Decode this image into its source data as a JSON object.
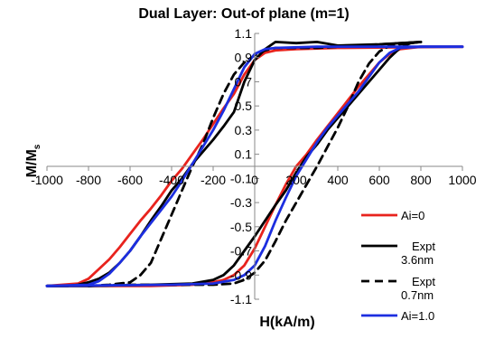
{
  "chart_data": {
    "type": "line",
    "title": "Dual Layer: Out-of plane (m=1)",
    "xlabel": "H(kA/m)",
    "ylabel_main": "M/M",
    "ylabel_sub": "s",
    "xlim": [
      -1000,
      1000
    ],
    "ylim": [
      -1.1,
      1.1
    ],
    "x_ticks": [
      "-1000",
      "-800",
      "-600",
      "-400",
      "-200",
      "0",
      "200",
      "400",
      "600",
      "800",
      "1000"
    ],
    "y_ticks": [
      "1.1",
      "0.9",
      "0.7",
      "0.5",
      "0.3",
      "0.1",
      "-0.1",
      "-0.3",
      "-0.5",
      "-0.7",
      "-0.9",
      "-1.1"
    ],
    "grid": false,
    "legend_position": "bottom-right",
    "series": [
      {
        "name": "Ai=0",
        "color": "#e8231d",
        "dash": "solid",
        "branches": [
          [
            [
              1000,
              0.99
            ],
            [
              800,
              0.99
            ],
            [
              700,
              0.97
            ],
            [
              650,
              0.93
            ],
            [
              600,
              0.86
            ],
            [
              550,
              0.76
            ],
            [
              500,
              0.66
            ],
            [
              450,
              0.55
            ],
            [
              400,
              0.44
            ],
            [
              350,
              0.33
            ],
            [
              300,
              0.22
            ],
            [
              250,
              0.1
            ],
            [
              200,
              0.0
            ],
            [
              150,
              -0.15
            ],
            [
              100,
              -0.32
            ],
            [
              50,
              -0.5
            ],
            [
              0,
              -0.68
            ],
            [
              -50,
              -0.82
            ],
            [
              -100,
              -0.9
            ],
            [
              -150,
              -0.94
            ],
            [
              -200,
              -0.96
            ],
            [
              -300,
              -0.98
            ],
            [
              -500,
              -0.99
            ],
            [
              -1000,
              -0.99
            ]
          ],
          [
            [
              -1000,
              -0.99
            ],
            [
              -850,
              -0.97
            ],
            [
              -800,
              -0.93
            ],
            [
              -750,
              -0.85
            ],
            [
              -700,
              -0.77
            ],
            [
              -650,
              -0.67
            ],
            [
              -600,
              -0.56
            ],
            [
              -550,
              -0.45
            ],
            [
              -500,
              -0.35
            ],
            [
              -450,
              -0.24
            ],
            [
              -400,
              -0.12
            ],
            [
              -350,
              -0.02
            ],
            [
              -300,
              0.1
            ],
            [
              -250,
              0.22
            ],
            [
              -200,
              0.35
            ],
            [
              -150,
              0.48
            ],
            [
              -100,
              0.6
            ],
            [
              -50,
              0.76
            ],
            [
              0,
              0.88
            ],
            [
              50,
              0.94
            ],
            [
              100,
              0.96
            ],
            [
              200,
              0.97
            ],
            [
              400,
              0.98
            ],
            [
              1000,
              0.99
            ]
          ]
        ]
      },
      {
        "name": "Expt 3.6nm",
        "color": "#000000",
        "dash": "solid",
        "branches": [
          [
            [
              800,
              1.03
            ],
            [
              750,
              1.02
            ],
            [
              700,
              0.98
            ],
            [
              650,
              0.9
            ],
            [
              600,
              0.8
            ],
            [
              550,
              0.7
            ],
            [
              500,
              0.6
            ],
            [
              450,
              0.5
            ],
            [
              400,
              0.4
            ],
            [
              350,
              0.3
            ],
            [
              300,
              0.18
            ],
            [
              250,
              0.08
            ],
            [
              200,
              -0.05
            ],
            [
              150,
              -0.2
            ],
            [
              100,
              -0.32
            ],
            [
              50,
              -0.45
            ],
            [
              0,
              -0.58
            ],
            [
              -50,
              -0.7
            ],
            [
              -100,
              -0.82
            ],
            [
              -150,
              -0.9
            ],
            [
              -200,
              -0.94
            ],
            [
              -300,
              -0.97
            ],
            [
              -500,
              -0.98
            ],
            [
              -800,
              -0.99
            ],
            [
              -1000,
              -0.99
            ]
          ],
          [
            [
              -1000,
              -0.99
            ],
            [
              -900,
              -0.99
            ],
            [
              -850,
              -0.98
            ],
            [
              -800,
              -0.96
            ],
            [
              -750,
              -0.93
            ],
            [
              -700,
              -0.88
            ],
            [
              -650,
              -0.8
            ],
            [
              -600,
              -0.7
            ],
            [
              -550,
              -0.58
            ],
            [
              -500,
              -0.45
            ],
            [
              -450,
              -0.33
            ],
            [
              -400,
              -0.2
            ],
            [
              -350,
              -0.1
            ],
            [
              -300,
              0.02
            ],
            [
              -250,
              0.12
            ],
            [
              -200,
              0.22
            ],
            [
              -150,
              0.33
            ],
            [
              -100,
              0.45
            ],
            [
              -50,
              0.7
            ],
            [
              0,
              0.88
            ],
            [
              50,
              0.97
            ],
            [
              100,
              1.03
            ],
            [
              200,
              1.02
            ],
            [
              300,
              1.03
            ],
            [
              400,
              1.0
            ],
            [
              600,
              1.01
            ],
            [
              800,
              1.03
            ]
          ]
        ]
      },
      {
        "name": "Expt 0.7nm",
        "color": "#000000",
        "dash": "dashed",
        "branches": [
          [
            [
              800,
              1.03
            ],
            [
              700,
              1.01
            ],
            [
              650,
              1.0
            ],
            [
              600,
              0.95
            ],
            [
              550,
              0.85
            ],
            [
              500,
              0.7
            ],
            [
              450,
              0.5
            ],
            [
              400,
              0.32
            ],
            [
              350,
              0.16
            ],
            [
              300,
              0.0
            ],
            [
              250,
              -0.15
            ],
            [
              200,
              -0.3
            ],
            [
              150,
              -0.45
            ],
            [
              100,
              -0.62
            ],
            [
              50,
              -0.78
            ],
            [
              0,
              -0.88
            ],
            [
              -50,
              -0.94
            ],
            [
              -100,
              -0.97
            ],
            [
              -200,
              -0.98
            ],
            [
              -400,
              -0.98
            ],
            [
              -600,
              -0.98
            ],
            [
              -800,
              -0.99
            ]
          ],
          [
            [
              -800,
              -0.99
            ],
            [
              -700,
              -0.98
            ],
            [
              -600,
              -0.96
            ],
            [
              -550,
              -0.9
            ],
            [
              -500,
              -0.8
            ],
            [
              -450,
              -0.6
            ],
            [
              -400,
              -0.4
            ],
            [
              -350,
              -0.2
            ],
            [
              -300,
              0.0
            ],
            [
              -250,
              0.18
            ],
            [
              -200,
              0.4
            ],
            [
              -150,
              0.6
            ],
            [
              -100,
              0.76
            ],
            [
              -50,
              0.86
            ],
            [
              0,
              0.92
            ],
            [
              50,
              0.96
            ],
            [
              100,
              0.98
            ],
            [
              300,
              0.98
            ],
            [
              500,
              1.0
            ],
            [
              800,
              1.03
            ]
          ]
        ]
      },
      {
        "name": "Ai=1.0",
        "color": "#1c2ee0",
        "dash": "solid",
        "branches": [
          [
            [
              1000,
              0.99
            ],
            [
              800,
              0.99
            ],
            [
              700,
              0.98
            ],
            [
              650,
              0.94
            ],
            [
              600,
              0.86
            ],
            [
              550,
              0.74
            ],
            [
              500,
              0.62
            ],
            [
              450,
              0.52
            ],
            [
              400,
              0.42
            ],
            [
              350,
              0.32
            ],
            [
              300,
              0.2
            ],
            [
              250,
              0.06
            ],
            [
              200,
              -0.08
            ],
            [
              150,
              -0.26
            ],
            [
              100,
              -0.45
            ],
            [
              50,
              -0.66
            ],
            [
              0,
              -0.82
            ],
            [
              -50,
              -0.9
            ],
            [
              -100,
              -0.94
            ],
            [
              -200,
              -0.97
            ],
            [
              -400,
              -0.98
            ],
            [
              -1000,
              -0.99
            ]
          ],
          [
            [
              -1000,
              -0.99
            ],
            [
              -800,
              -0.98
            ],
            [
              -750,
              -0.95
            ],
            [
              -700,
              -0.89
            ],
            [
              -650,
              -0.8
            ],
            [
              -600,
              -0.7
            ],
            [
              -550,
              -0.58
            ],
            [
              -500,
              -0.47
            ],
            [
              -450,
              -0.36
            ],
            [
              -400,
              -0.25
            ],
            [
              -350,
              -0.12
            ],
            [
              -300,
              0.02
            ],
            [
              -250,
              0.16
            ],
            [
              -200,
              0.3
            ],
            [
              -150,
              0.46
            ],
            [
              -100,
              0.64
            ],
            [
              -50,
              0.82
            ],
            [
              0,
              0.93
            ],
            [
              50,
              0.97
            ],
            [
              100,
              0.98
            ],
            [
              300,
              0.99
            ],
            [
              1000,
              0.99
            ]
          ]
        ]
      }
    ],
    "legend": [
      {
        "label_lines": [
          "Ai=0"
        ],
        "color": "#e8231d",
        "dash": "solid",
        "text_color": "#e8231d"
      },
      {
        "label_lines": [
          "Expt",
          "3.6nm"
        ],
        "color": "#000000",
        "dash": "solid",
        "text_color": "#000000"
      },
      {
        "label_lines": [
          "Expt",
          "0.7nm"
        ],
        "color": "#000000",
        "dash": "dashed",
        "text_color": "#000000"
      },
      {
        "label_lines": [
          "Ai=1.0"
        ],
        "color": "#1c2ee0",
        "dash": "solid",
        "text_color": "#1c2ee0"
      }
    ]
  }
}
